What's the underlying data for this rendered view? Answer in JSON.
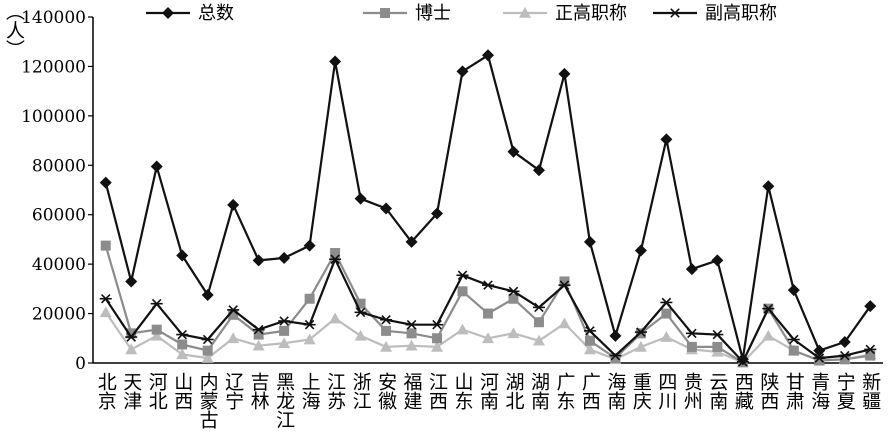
{
  "chart_data": {
    "type": "line",
    "title": "",
    "xlabel": "",
    "ylabel": "（人）",
    "ylim": [
      0,
      140000
    ],
    "yticks": [
      0,
      20000,
      40000,
      60000,
      80000,
      100000,
      120000,
      140000
    ],
    "ytick_labels": [
      "0",
      "20000",
      "40000",
      "60000",
      "80000",
      "100000",
      "120000",
      "140000"
    ],
    "grid": false,
    "legend_position": "top",
    "categories": [
      "北京",
      "天津",
      "河北",
      "山西",
      "内蒙古",
      "辽宁",
      "吉林",
      "黑龙江",
      "上海",
      "江苏",
      "浙江",
      "安徽",
      "福建",
      "江西",
      "山东",
      "河南",
      "湖北",
      "湖南",
      "广东",
      "广西",
      "海南",
      "重庆",
      "四川",
      "贵州",
      "云南",
      "西藏",
      "陕西",
      "甘肃",
      "青海",
      "宁夏",
      "新疆"
    ],
    "series": [
      {
        "name": "总数",
        "color": "#111111",
        "marker": "diamond",
        "values": [
          73000,
          33000,
          79500,
          43500,
          27500,
          64000,
          41500,
          42500,
          47500,
          122000,
          66500,
          62500,
          49000,
          60500,
          118000,
          124500,
          85500,
          78000,
          117000,
          49000,
          11000,
          45500,
          90500,
          38000,
          41500,
          1500,
          71500,
          29500,
          5000,
          8500,
          23000
        ]
      },
      {
        "name": "博士",
        "color": "#8c8c8c",
        "marker": "square",
        "values": [
          47500,
          12000,
          13500,
          7500,
          5000,
          19500,
          11500,
          13000,
          26000,
          44500,
          24000,
          13000,
          12000,
          10000,
          29000,
          20000,
          26000,
          16500,
          33000,
          9000,
          2000,
          12000,
          20000,
          6500,
          6500,
          300,
          22000,
          5000,
          1000,
          1500,
          3000
        ]
      },
      {
        "name": "正高职称",
        "color": "#bdbdbd",
        "marker": "triangle",
        "values": [
          20500,
          5500,
          11000,
          3500,
          2000,
          10000,
          7000,
          8000,
          9500,
          18000,
          11000,
          6500,
          7000,
          6500,
          13500,
          10000,
          12000,
          9000,
          16000,
          5500,
          1500,
          6500,
          10500,
          5500,
          4500,
          200,
          11000,
          5000,
          1000,
          1500,
          3500
        ]
      },
      {
        "name": "副高职称",
        "color": "#111111",
        "marker": "star",
        "values": [
          26000,
          10500,
          24000,
          11500,
          9500,
          21500,
          13500,
          17000,
          15500,
          42000,
          20500,
          17500,
          15500,
          15500,
          35500,
          31500,
          29000,
          22500,
          31500,
          13000,
          3000,
          12500,
          24500,
          12000,
          11500,
          500,
          22000,
          9500,
          2000,
          3000,
          5500
        ]
      }
    ]
  }
}
